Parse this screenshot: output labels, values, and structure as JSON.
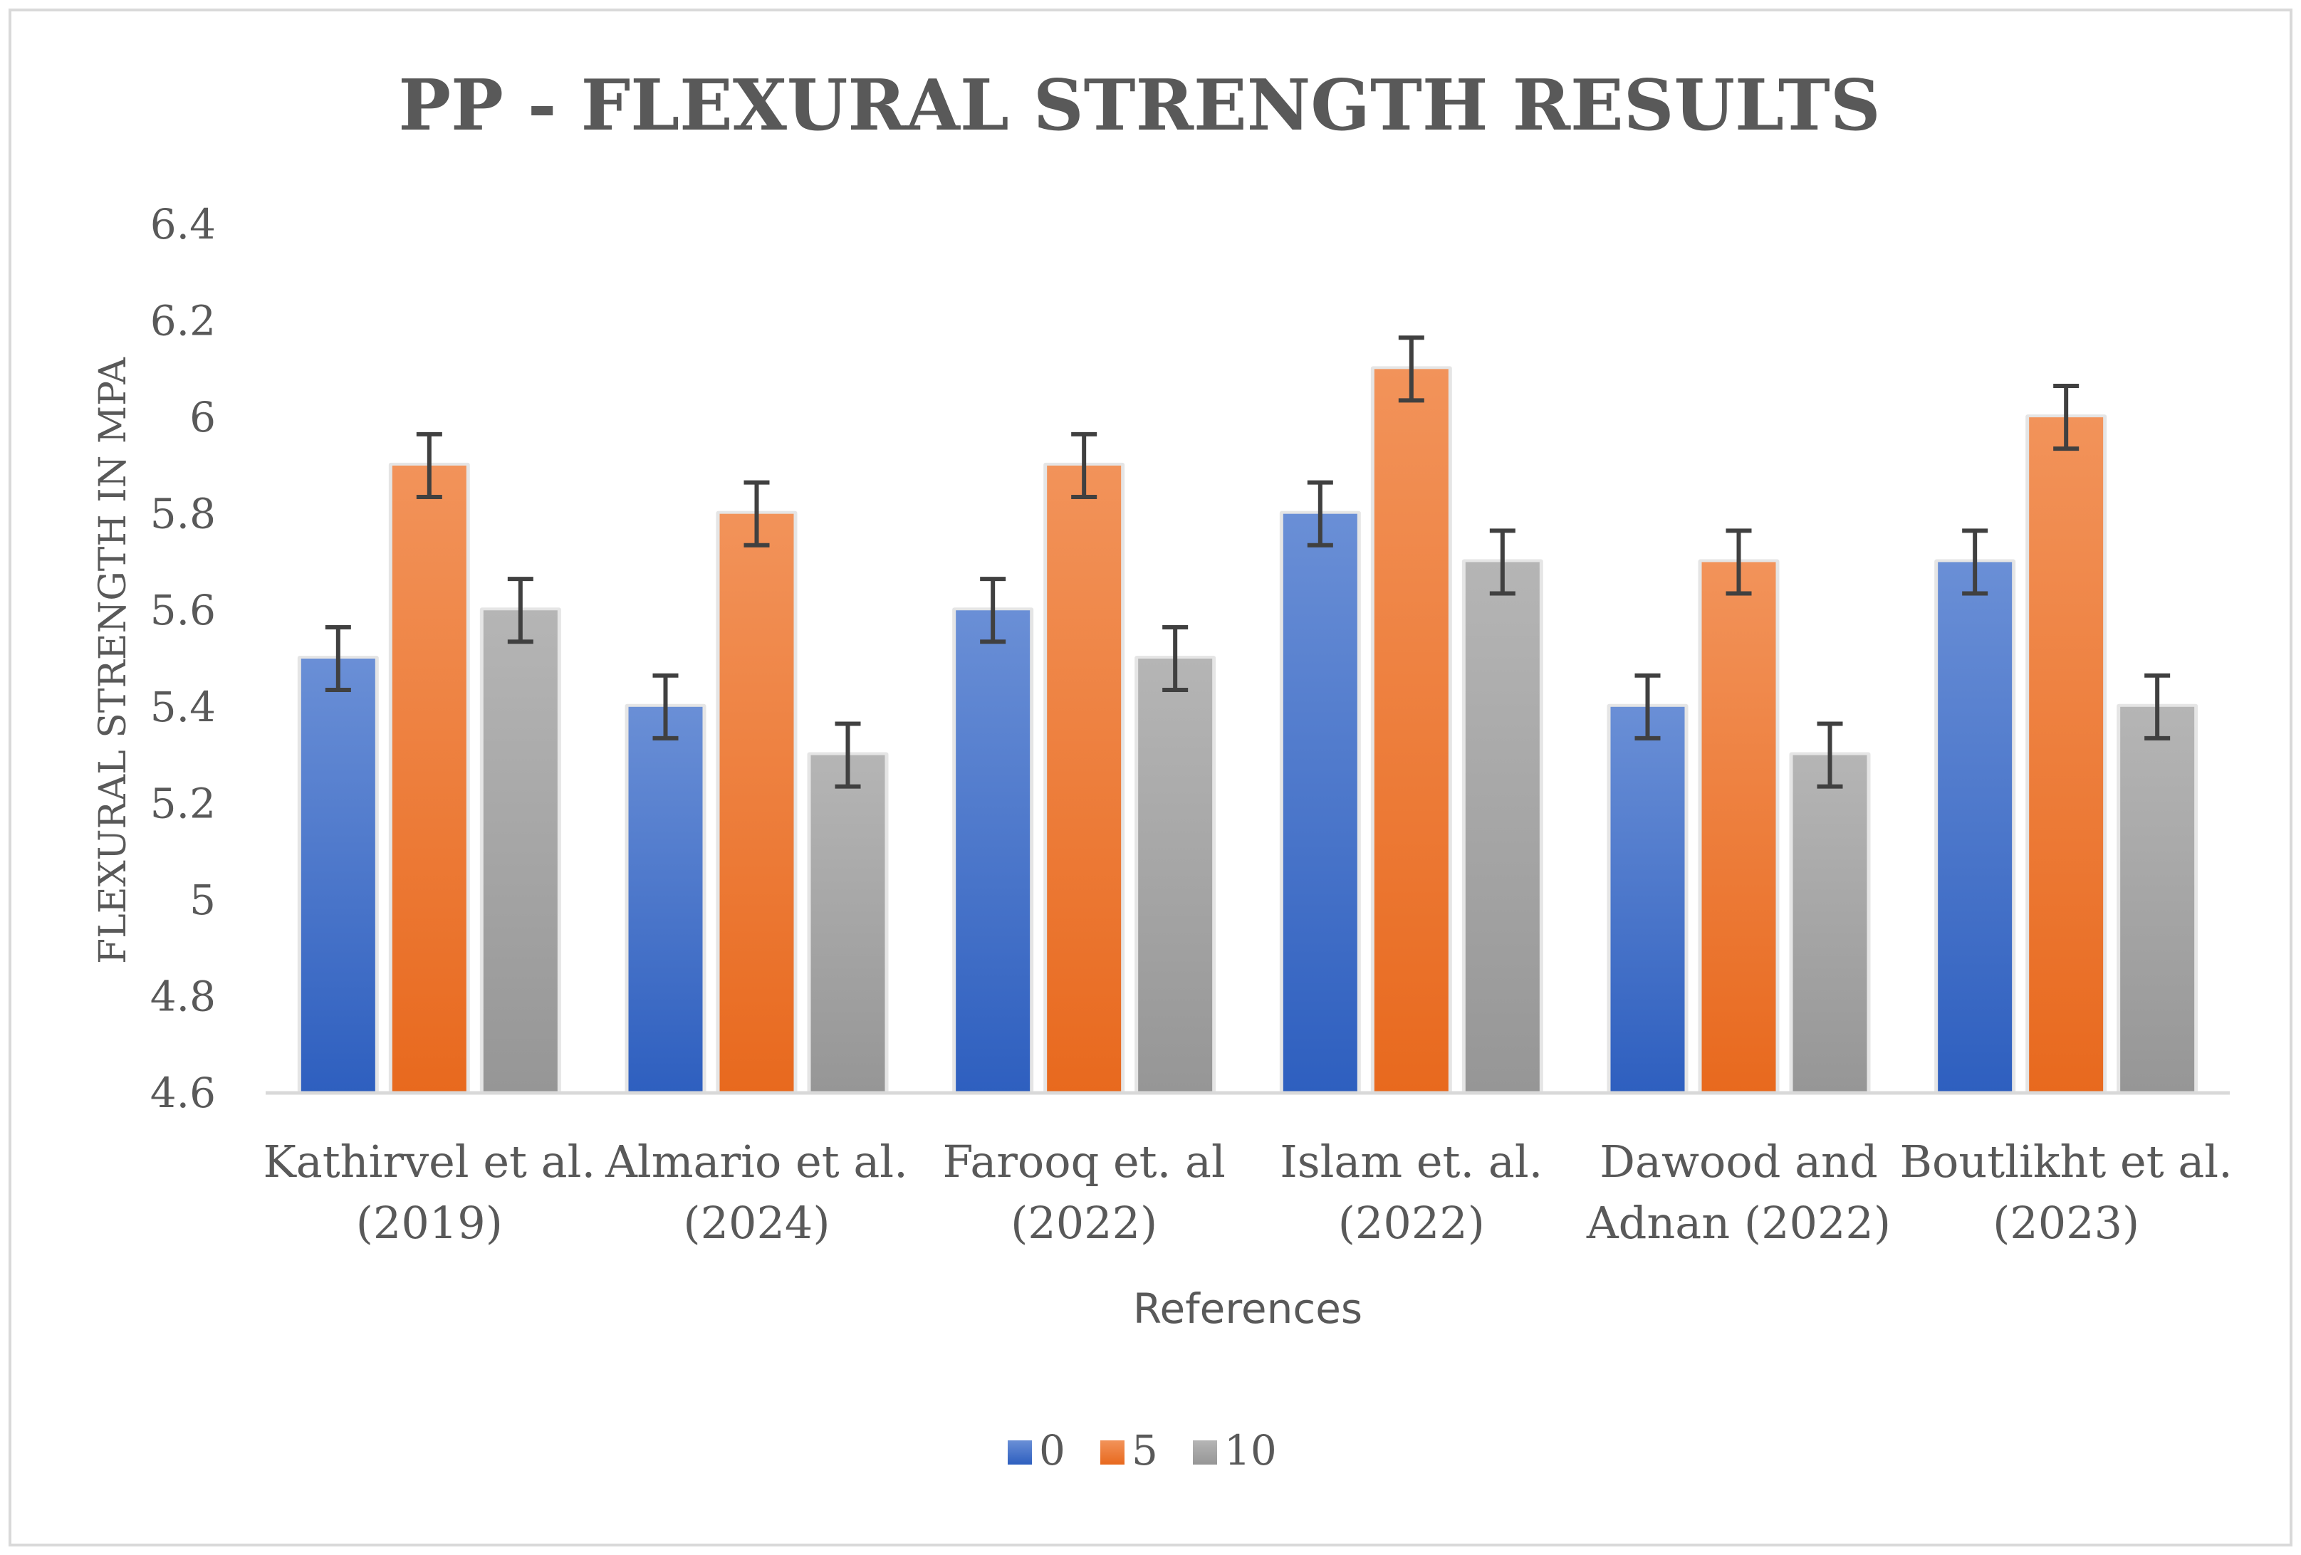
{
  "chart_data": {
    "type": "bar",
    "title": "PP - FLEXURAL STRENGTH RESULTS",
    "xlabel": "References",
    "ylabel": "FLEXURAL STRENGTH IN MPA",
    "ylim": [
      4.6,
      6.4
    ],
    "yticks": [
      "4.6",
      "4.8",
      "5",
      "5.2",
      "5.4",
      "5.6",
      "5.8",
      "6",
      "6.2",
      "6.4"
    ],
    "ytick_values": [
      4.6,
      4.8,
      5.0,
      5.2,
      5.4,
      5.6,
      5.8,
      6.0,
      6.2,
      6.4
    ],
    "categories": [
      [
        "Kathirvel et al.",
        "(2019)"
      ],
      [
        "Almario et al.",
        "(2024)"
      ],
      [
        "Farooq et. al",
        "(2022)"
      ],
      [
        "Islam et. al.",
        "(2022)"
      ],
      [
        "Dawood and",
        "Adnan (2022)"
      ],
      [
        "Boutlikht et al.",
        "(2023)"
      ]
    ],
    "series": [
      {
        "name": "0",
        "color_top": "#6a8fd6",
        "color_bottom": "#2e5fbf",
        "values": [
          5.5,
          5.4,
          5.6,
          5.8,
          5.4,
          5.7
        ]
      },
      {
        "name": "5",
        "color_top": "#f2935a",
        "color_bottom": "#e8691e",
        "values": [
          5.9,
          5.8,
          5.9,
          6.1,
          5.7,
          6.0
        ]
      },
      {
        "name": "10",
        "color_top": "#b5b5b5",
        "color_bottom": "#969696",
        "values": [
          5.6,
          5.3,
          5.5,
          5.7,
          5.3,
          5.4
        ]
      }
    ],
    "error_bars": {
      "plus_minus": 0.065,
      "color": "#404040"
    },
    "legend": {
      "position": "bottom-center"
    },
    "grid": false
  }
}
